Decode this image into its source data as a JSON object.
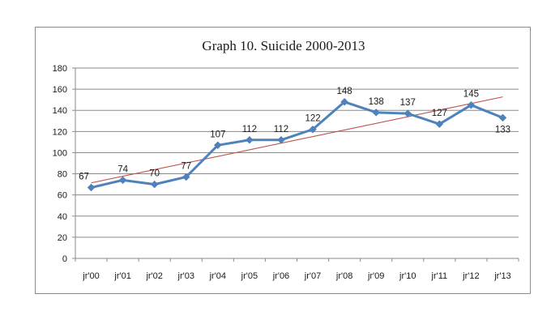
{
  "chart_data": {
    "type": "line",
    "title": "Graph 10. Suicide 2000-2013",
    "categories": [
      "jr'00",
      "jr'01",
      "jr'02",
      "jr'03",
      "jr'04",
      "jr'05",
      "jr'06",
      "jr'07",
      "jr'08",
      "jr'09",
      "jr'10",
      "jr'11",
      "jr'12",
      "jr'13"
    ],
    "series": [
      {
        "values": [
          67,
          74,
          70,
          77,
          107,
          112,
          112,
          122,
          148,
          138,
          137,
          127,
          145,
          133
        ],
        "color": "#4f81bd",
        "marker": "diamond"
      }
    ],
    "trendline": {
      "type": "linear",
      "color": "#c0504d"
    },
    "ylim": [
      0,
      180
    ],
    "yticks": [
      0,
      20,
      40,
      60,
      80,
      100,
      120,
      140,
      160,
      180
    ],
    "grid": true,
    "legend": "none",
    "data_labels": true
  }
}
